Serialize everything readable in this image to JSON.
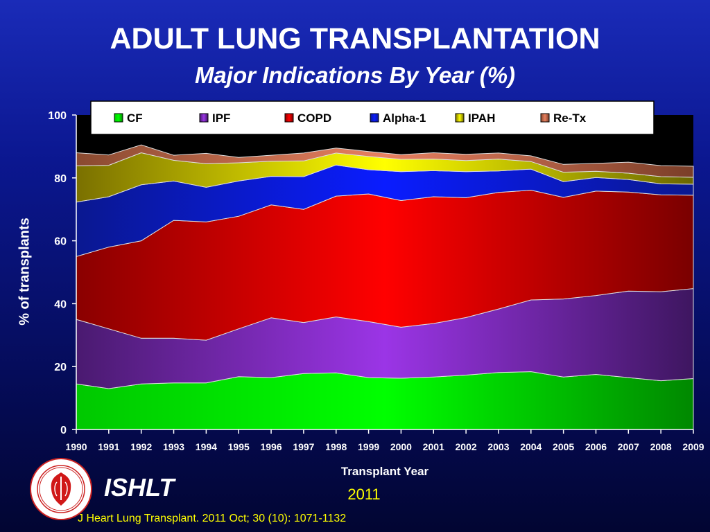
{
  "slide": {
    "title": "ADULT LUNG TRANSPLANTATION",
    "subtitle": "Major Indications By Year (%)",
    "org": "ISHLT",
    "year": "2011",
    "citation": "J Heart Lung Transplant. 2011 Oct; 30 (10): 1071-1132"
  },
  "chart_data": {
    "type": "area",
    "stacked": true,
    "title": "Major Indications By Year (%)",
    "xlabel": "Transplant Year",
    "ylabel": "% of transplants",
    "ylim": [
      0,
      100
    ],
    "yticks": [
      0,
      20,
      40,
      60,
      80,
      100
    ],
    "categories": [
      "1990",
      "1991",
      "1992",
      "1993",
      "1994",
      "1995",
      "1996",
      "1997",
      "1998",
      "1999",
      "2000",
      "2001",
      "2002",
      "2003",
      "2004",
      "2005",
      "2006",
      "2007",
      "2008",
      "2009"
    ],
    "legend_position": "top",
    "series": [
      {
        "name": "CF",
        "color": "#00dd00",
        "values": [
          14.5,
          13,
          14.5,
          14.8,
          14.8,
          16.8,
          16.5,
          17.8,
          18,
          16.5,
          16.3,
          16.7,
          17.3,
          18.1,
          18.4,
          16.7,
          17.5,
          16.5,
          15.5,
          16.2
        ]
      },
      {
        "name": "IPF",
        "color": "#8e2ee0",
        "values": [
          20.5,
          19,
          14.5,
          14.2,
          13.6,
          15.2,
          19,
          16.2,
          17.8,
          17.8,
          16.2,
          17,
          18.3,
          20.2,
          22.8,
          24.8,
          25.1,
          27.5,
          28.3,
          28.6
        ]
      },
      {
        "name": "COPD",
        "color": "#ff0000",
        "values": [
          20,
          26,
          31,
          37.5,
          37.6,
          35.8,
          35.9,
          36,
          38.4,
          40.6,
          40.3,
          40.3,
          38.1,
          37.1,
          34.9,
          32.3,
          33.2,
          31.5,
          30.8,
          29.7
        ]
      },
      {
        "name": "Alpha-1",
        "color": "#0a1cf0",
        "values": [
          17.3,
          16,
          17.8,
          12.5,
          11,
          11.2,
          9.1,
          10.4,
          9.9,
          7.7,
          9.2,
          8.3,
          8.3,
          6.8,
          6.7,
          5,
          4.3,
          4,
          3.5,
          3.5
        ]
      },
      {
        "name": "IPAH",
        "color": "#e8e800",
        "values": [
          11.5,
          10,
          10.2,
          6.6,
          7.5,
          5.8,
          4.8,
          5,
          3.8,
          4.2,
          3.9,
          3.7,
          3.5,
          3.8,
          2.4,
          3,
          2,
          2,
          2.3,
          2.2
        ]
      },
      {
        "name": "Re-Tx",
        "color": "#e07850",
        "values": [
          4.2,
          3.3,
          2.5,
          1.6,
          3.3,
          1.7,
          1.9,
          2.5,
          1.6,
          1.6,
          1.5,
          2,
          2,
          1.9,
          1.8,
          2.5,
          2.5,
          3.5,
          3.5,
          3.5
        ]
      }
    ]
  }
}
